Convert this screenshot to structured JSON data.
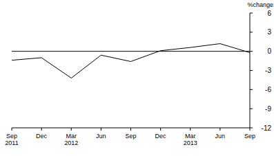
{
  "chart_data": {
    "type": "line",
    "y_label": "%change",
    "categories": [
      "Sep 2011",
      "Dec",
      "Mar 2012",
      "Jun",
      "Sep",
      "Dec",
      "Mar 2013",
      "Jun",
      "Sep"
    ],
    "values": [
      -1.4,
      -1.0,
      -4.2,
      -0.6,
      -1.6,
      0.1,
      0.6,
      1.2,
      -0.2
    ],
    "color": "#000000",
    "ylim": [
      -12,
      6
    ],
    "yticks": [
      6,
      3,
      0,
      -3,
      -6,
      -9,
      -12
    ],
    "grid": false
  }
}
